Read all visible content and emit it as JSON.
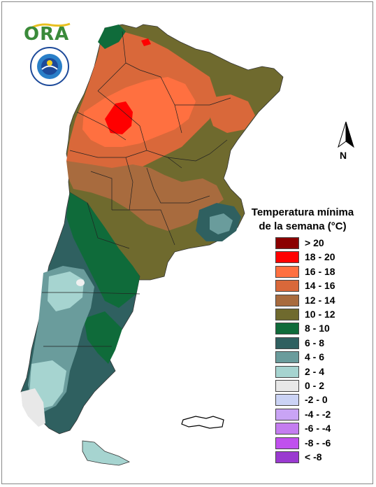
{
  "logo": {
    "text": "ORA"
  },
  "north_arrow": {
    "label": "N"
  },
  "legend": {
    "title_line1": "Temperatura mínima",
    "title_line2": "de la semana (°C)",
    "items": [
      {
        "label": "> 20",
        "color": "#8b0000"
      },
      {
        "label": "18 - 20",
        "color": "#ff0000"
      },
      {
        "label": "16 - 18",
        "color": "#ff7040"
      },
      {
        "label": "14 - 16",
        "color": "#d9683a"
      },
      {
        "label": "12 - 14",
        "color": "#a86b3e"
      },
      {
        "label": "10 - 12",
        "color": "#6f6a2e"
      },
      {
        "label": "8 - 10",
        "color": "#0f6b3a"
      },
      {
        "label": "6 - 8",
        "color": "#2f6060"
      },
      {
        "label": "4 - 6",
        "color": "#6a9c9c"
      },
      {
        "label": "2 - 4",
        "color": "#a6d4d0"
      },
      {
        "label": "0 - 2",
        "color": "#e8e8e8"
      },
      {
        "label": "-2 - 0",
        "color": "#cbd3f5"
      },
      {
        "label": "-4 - -2",
        "color": "#c9a4f5"
      },
      {
        "label": "-6 - -4",
        "color": "#c47df0"
      },
      {
        "label": "-8 - -6",
        "color": "#c050ee"
      },
      {
        "label": "< -8",
        "color": "#9a3ad0"
      }
    ]
  }
}
